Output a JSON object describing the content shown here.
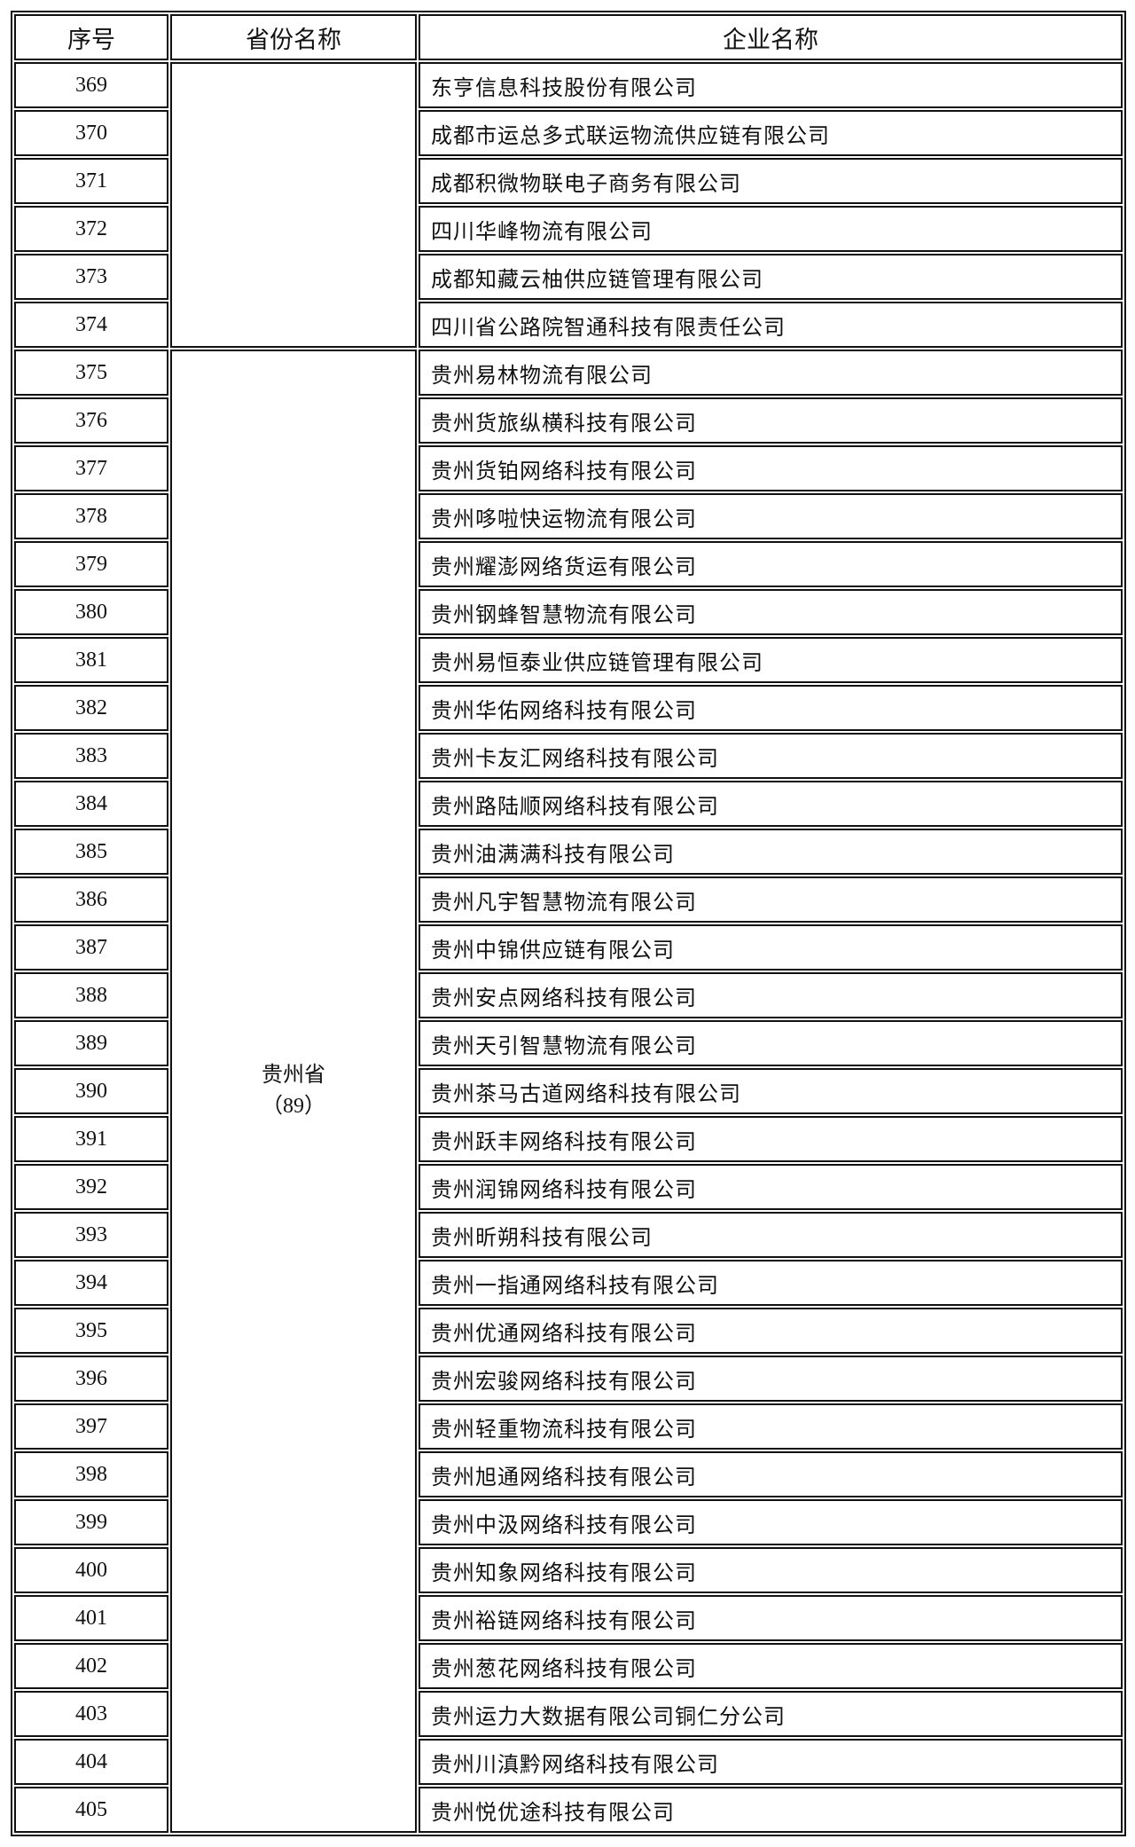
{
  "headers": {
    "index": "序号",
    "province": "省份名称",
    "company": "企业名称"
  },
  "groups": [
    {
      "province": "",
      "count": "",
      "rows": [
        {
          "index": "369",
          "company": "东亨信息科技股份有限公司"
        },
        {
          "index": "370",
          "company": "成都市运总多式联运物流供应链有限公司"
        },
        {
          "index": "371",
          "company": "成都积微物联电子商务有限公司"
        },
        {
          "index": "372",
          "company": "四川华峰物流有限公司"
        },
        {
          "index": "373",
          "company": "成都知藏云柚供应链管理有限公司"
        },
        {
          "index": "374",
          "company": "四川省公路院智通科技有限责任公司"
        }
      ]
    },
    {
      "province": "贵州省",
      "count": "（89）",
      "rows": [
        {
          "index": "375",
          "company": "贵州易林物流有限公司"
        },
        {
          "index": "376",
          "company": "贵州货旅纵横科技有限公司"
        },
        {
          "index": "377",
          "company": "贵州货铂网络科技有限公司"
        },
        {
          "index": "378",
          "company": "贵州哆啦快运物流有限公司"
        },
        {
          "index": "379",
          "company": "贵州耀澎网络货运有限公司"
        },
        {
          "index": "380",
          "company": "贵州钢蜂智慧物流有限公司"
        },
        {
          "index": "381",
          "company": "贵州易恒泰业供应链管理有限公司"
        },
        {
          "index": "382",
          "company": "贵州华佑网络科技有限公司"
        },
        {
          "index": "383",
          "company": "贵州卡友汇网络科技有限公司"
        },
        {
          "index": "384",
          "company": "贵州路陆顺网络科技有限公司"
        },
        {
          "index": "385",
          "company": "贵州油满满科技有限公司"
        },
        {
          "index": "386",
          "company": "贵州凡宇智慧物流有限公司"
        },
        {
          "index": "387",
          "company": "贵州中锦供应链有限公司"
        },
        {
          "index": "388",
          "company": "贵州安点网络科技有限公司"
        },
        {
          "index": "389",
          "company": "贵州天引智慧物流有限公司"
        },
        {
          "index": "390",
          "company": "贵州茶马古道网络科技有限公司"
        },
        {
          "index": "391",
          "company": "贵州跃丰网络科技有限公司"
        },
        {
          "index": "392",
          "company": "贵州润锦网络科技有限公司"
        },
        {
          "index": "393",
          "company": "贵州昕朔科技有限公司"
        },
        {
          "index": "394",
          "company": "贵州一指通网络科技有限公司"
        },
        {
          "index": "395",
          "company": "贵州优通网络科技有限公司"
        },
        {
          "index": "396",
          "company": "贵州宏骏网络科技有限公司"
        },
        {
          "index": "397",
          "company": "贵州轻重物流科技有限公司"
        },
        {
          "index": "398",
          "company": "贵州旭通网络科技有限公司"
        },
        {
          "index": "399",
          "company": "贵州中汲网络科技有限公司"
        },
        {
          "index": "400",
          "company": "贵州知象网络科技有限公司"
        },
        {
          "index": "401",
          "company": "贵州裕链网络科技有限公司"
        },
        {
          "index": "402",
          "company": "贵州葱花网络科技有限公司"
        },
        {
          "index": "403",
          "company": "贵州运力大数据有限公司铜仁分公司"
        },
        {
          "index": "404",
          "company": "贵州川滇黔网络科技有限公司"
        },
        {
          "index": "405",
          "company": "贵州悦优途科技有限公司"
        }
      ]
    }
  ]
}
